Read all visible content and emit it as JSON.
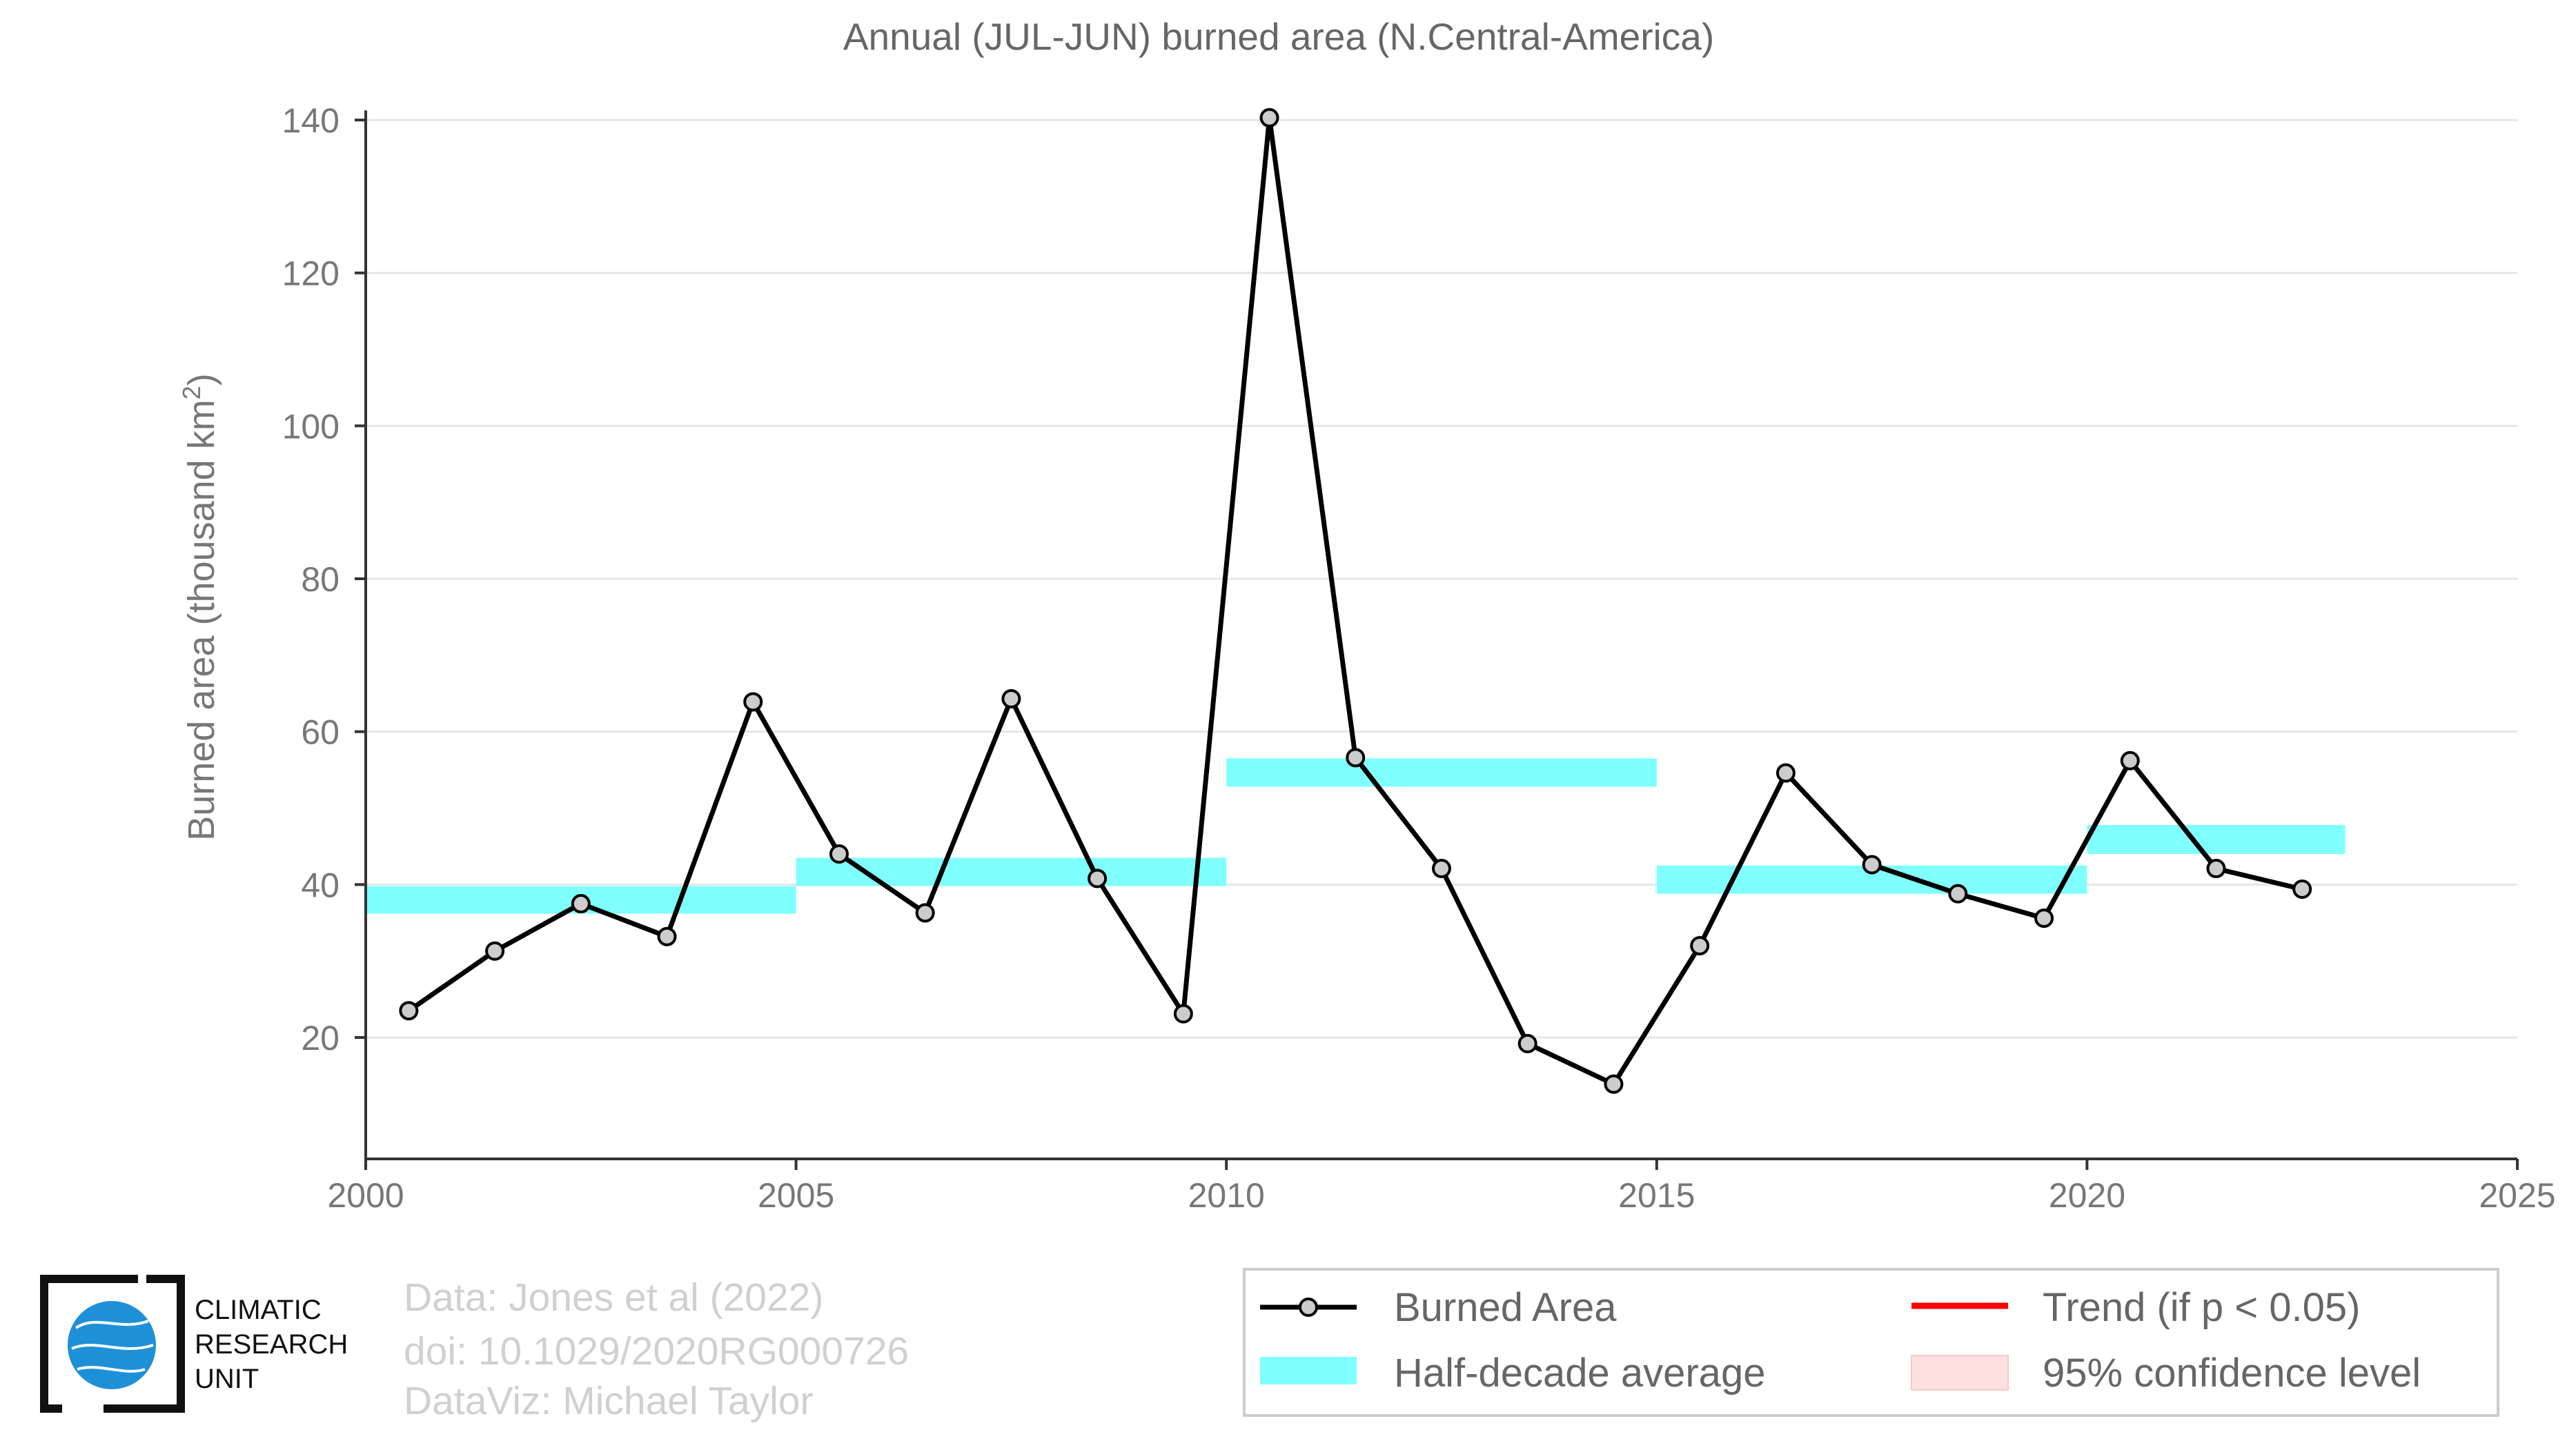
{
  "chart_data": {
    "type": "line",
    "title": "Annual (JUL-JUN) burned area (N.Central-America)",
    "ylabel_main": "Burned area (thousand km",
    "ylabel_sup": "2",
    "ylabel_close": ")",
    "xlabel": "",
    "xlim": [
      2000,
      2025
    ],
    "ylim": [
      4,
      140
    ],
    "x_ticks": [
      2000,
      2005,
      2010,
      2015,
      2020,
      2025
    ],
    "y_ticks": [
      20,
      40,
      60,
      80,
      100,
      120,
      140
    ],
    "grid": "horizontal",
    "series": [
      {
        "name": "Burned Area",
        "color": "#000000",
        "marker_fill": "#cccccc",
        "x": [
          2000.5,
          2001.5,
          2002.5,
          2003.5,
          2004.5,
          2005.5,
          2006.5,
          2007.5,
          2008.5,
          2009.5,
          2010.5,
          2011.5,
          2012.5,
          2013.5,
          2014.5,
          2015.5,
          2016.5,
          2017.5,
          2018.5,
          2019.5,
          2020.5,
          2021.5,
          2022.5
        ],
        "values": [
          23.5,
          31.3,
          37.5,
          33.2,
          63.9,
          44.0,
          36.3,
          64.3,
          40.8,
          23.1,
          140.3,
          56.6,
          42.1,
          19.2,
          13.9,
          32.0,
          54.6,
          42.6,
          38.8,
          35.6,
          56.2,
          42.1,
          39.4
        ]
      },
      {
        "name": "Half-decade average",
        "color": "#80ffff",
        "segments": [
          {
            "x": [
              2000,
              2005
            ],
            "y": [
              36.2,
              39.8
            ]
          },
          {
            "x": [
              2005,
              2010
            ],
            "y": [
              39.8,
              43.5
            ]
          },
          {
            "x": [
              2010,
              2015
            ],
            "y": [
              52.8,
              56.5
            ]
          },
          {
            "x": [
              2015,
              2020
            ],
            "y": [
              38.8,
              42.5
            ]
          },
          {
            "x": [
              2020,
              2023
            ],
            "y": [
              44.0,
              47.8
            ]
          }
        ]
      }
    ],
    "legend": {
      "placement": "bottom-right",
      "entries": [
        {
          "label": "Burned Area",
          "kind": "line-marker",
          "color": "#000000"
        },
        {
          "label": "Trend (if p < 0.05)",
          "kind": "line",
          "color": "#ff0000"
        },
        {
          "label": "Half-decade average",
          "kind": "band",
          "color": "#80ffff"
        },
        {
          "label": "95% confidence level",
          "kind": "band",
          "color": "#ffe0e0"
        }
      ]
    }
  },
  "credits": {
    "line1": "Data: Jones et al (2022)",
    "line2": "doi: 10.1029/2020RG000726",
    "line3": "DataViz: Michael Taylor"
  },
  "logo": {
    "line1": "CLIMATIC",
    "line2": "RESEARCH",
    "line3": "UNIT",
    "globe_color": "#1e90d8"
  },
  "colors": {
    "axis": "#333333",
    "grid": "#e6e6e6",
    "text": "#777777"
  }
}
